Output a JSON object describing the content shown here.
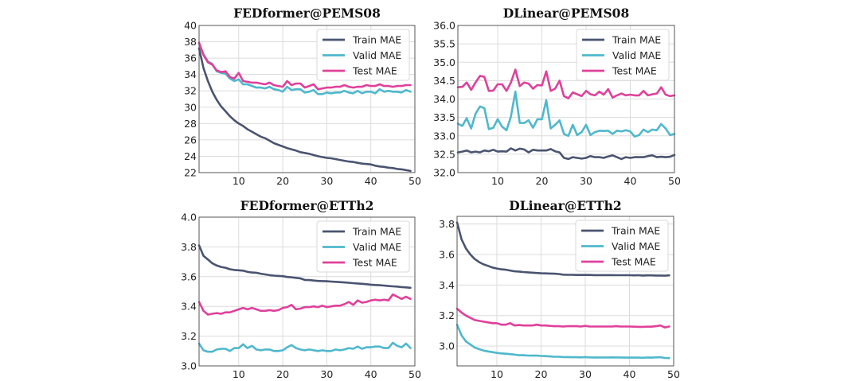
{
  "chart_data": [
    {
      "type": "line",
      "title": "FEDformer@PEMS08",
      "xlabel": "",
      "ylabel": "",
      "xlim": [
        1,
        50
      ],
      "ylim": [
        22,
        40
      ],
      "xticks": [
        10,
        20,
        30,
        40,
        50
      ],
      "yticks": [
        22,
        24,
        26,
        28,
        30,
        32,
        34,
        36,
        38,
        40
      ],
      "ytick_labels": [
        "22",
        "24",
        "26",
        "28",
        "30",
        "32",
        "34",
        "36",
        "38",
        "40"
      ],
      "grid": true,
      "legend_position": "top-right",
      "x": [
        1,
        2,
        3,
        4,
        5,
        6,
        7,
        8,
        9,
        10,
        11,
        12,
        13,
        14,
        15,
        16,
        17,
        18,
        19,
        20,
        21,
        22,
        23,
        24,
        25,
        26,
        27,
        28,
        29,
        30,
        31,
        32,
        33,
        34,
        35,
        36,
        37,
        38,
        39,
        40,
        41,
        42,
        43,
        44,
        45,
        46,
        47,
        48,
        49
      ],
      "series": [
        {
          "name": "Train MAE",
          "color": "#4a5470",
          "values": [
            37.2,
            34.8,
            33.2,
            31.9,
            30.9,
            30.1,
            29.5,
            28.9,
            28.4,
            28.0,
            27.7,
            27.3,
            27.0,
            26.7,
            26.4,
            26.2,
            25.9,
            25.6,
            25.4,
            25.2,
            25.0,
            24.85,
            24.7,
            24.5,
            24.4,
            24.3,
            24.15,
            24.0,
            23.9,
            23.8,
            23.75,
            23.65,
            23.55,
            23.45,
            23.35,
            23.3,
            23.2,
            23.1,
            23.05,
            23.0,
            22.85,
            22.75,
            22.7,
            22.6,
            22.55,
            22.45,
            22.4,
            22.3,
            22.2
          ]
        },
        {
          "name": "Valid MAE",
          "color": "#4fb8cc",
          "values": [
            37.8,
            36.5,
            35.6,
            35.3,
            34.4,
            34.2,
            34.1,
            33.5,
            33.2,
            33.4,
            32.8,
            32.8,
            32.6,
            32.4,
            32.4,
            32.3,
            32.5,
            32.2,
            32.1,
            31.9,
            32.5,
            32.1,
            32.2,
            32.2,
            31.8,
            31.9,
            32.1,
            31.6,
            31.6,
            31.8,
            31.7,
            31.8,
            31.8,
            32.0,
            31.8,
            31.7,
            32.0,
            31.7,
            31.9,
            31.9,
            31.7,
            32.2,
            31.9,
            32.0,
            31.9,
            31.9,
            31.8,
            32.1,
            31.9
          ]
        },
        {
          "name": "Test MAE",
          "color": "#e0409a",
          "values": [
            37.9,
            36.4,
            35.5,
            35.2,
            34.5,
            34.3,
            34.4,
            33.7,
            33.5,
            34.2,
            33.2,
            33.1,
            33.0,
            33.0,
            32.9,
            32.8,
            33.0,
            32.7,
            32.6,
            32.5,
            33.2,
            32.7,
            32.9,
            32.9,
            32.4,
            32.6,
            32.8,
            32.2,
            32.3,
            32.4,
            32.4,
            32.5,
            32.5,
            32.7,
            32.5,
            32.4,
            32.5,
            32.5,
            32.7,
            32.6,
            32.6,
            32.8,
            32.6,
            32.6,
            32.5,
            32.6,
            32.6,
            32.7,
            32.7
          ]
        }
      ]
    },
    {
      "type": "line",
      "title": "DLinear@PEMS08",
      "xlabel": "",
      "ylabel": "",
      "xlim": [
        1,
        50
      ],
      "ylim": [
        32.0,
        36.0
      ],
      "xticks": [
        10,
        20,
        30,
        40,
        50
      ],
      "yticks": [
        32.0,
        32.5,
        33.0,
        33.5,
        34.0,
        34.5,
        35.0,
        35.5,
        36.0
      ],
      "ytick_labels": [
        "32.0",
        "32.5",
        "33.0",
        "33.5",
        "34.0",
        "34.5",
        "35.0",
        "35.5",
        "36.0"
      ],
      "grid": true,
      "legend_position": "top-right",
      "x": [
        1,
        2,
        3,
        4,
        5,
        6,
        7,
        8,
        9,
        10,
        11,
        12,
        13,
        14,
        15,
        16,
        17,
        18,
        19,
        20,
        21,
        22,
        23,
        24,
        25,
        26,
        27,
        28,
        29,
        30,
        31,
        32,
        33,
        34,
        35,
        36,
        37,
        38,
        39,
        40,
        41,
        42,
        43,
        44,
        45,
        46,
        47,
        48,
        49,
        50
      ],
      "series": [
        {
          "name": "Train MAE",
          "color": "#4a5470",
          "values": [
            32.55,
            32.57,
            32.6,
            32.55,
            32.57,
            32.55,
            32.6,
            32.58,
            32.62,
            32.57,
            32.58,
            32.57,
            32.66,
            32.6,
            32.65,
            32.63,
            32.55,
            32.62,
            32.6,
            32.6,
            32.6,
            32.64,
            32.58,
            32.55,
            32.4,
            32.37,
            32.42,
            32.4,
            32.38,
            32.4,
            32.45,
            32.42,
            32.42,
            32.4,
            32.44,
            32.47,
            32.42,
            32.37,
            32.42,
            32.4,
            32.42,
            32.42,
            32.42,
            32.45,
            32.47,
            32.42,
            32.43,
            32.42,
            32.43,
            32.48
          ]
        },
        {
          "name": "Valid MAE",
          "color": "#4fb8cc",
          "values": [
            33.33,
            33.27,
            33.48,
            33.2,
            33.6,
            33.8,
            33.75,
            33.18,
            33.22,
            33.45,
            33.25,
            33.15,
            33.52,
            34.2,
            33.35,
            33.35,
            33.42,
            33.22,
            33.45,
            33.45,
            33.97,
            33.2,
            33.3,
            33.42,
            33.05,
            33.0,
            33.3,
            33.02,
            33.1,
            33.3,
            33.02,
            33.1,
            33.14,
            33.13,
            33.14,
            33.05,
            33.14,
            33.12,
            33.15,
            33.12,
            32.98,
            33.02,
            33.17,
            33.1,
            33.17,
            33.15,
            33.32,
            33.2,
            33.02,
            33.05
          ]
        },
        {
          "name": "Test MAE",
          "color": "#e0409a",
          "values": [
            34.32,
            34.33,
            34.45,
            34.25,
            34.45,
            34.63,
            34.6,
            34.22,
            34.23,
            34.4,
            34.4,
            34.22,
            34.45,
            34.8,
            34.35,
            34.45,
            34.42,
            34.28,
            34.38,
            34.37,
            34.75,
            34.22,
            34.28,
            34.5,
            34.08,
            34.02,
            34.18,
            34.13,
            34.08,
            34.22,
            34.13,
            34.1,
            34.2,
            34.12,
            34.27,
            34.04,
            34.1,
            34.15,
            34.1,
            34.12,
            34.1,
            34.1,
            34.22,
            34.1,
            34.13,
            34.15,
            34.32,
            34.12,
            34.08,
            34.1
          ]
        }
      ]
    },
    {
      "type": "line",
      "title": "FEDformer@ETTh2",
      "xlabel": "",
      "ylabel": "",
      "xlim": [
        1,
        50
      ],
      "ylim": [
        3.0,
        4.0
      ],
      "xticks": [
        10,
        20,
        30,
        40,
        50
      ],
      "yticks": [
        3.0,
        3.2,
        3.4,
        3.6,
        3.8,
        4.0
      ],
      "ytick_labels": [
        "3.0",
        "3.2",
        "3.4",
        "3.6",
        "3.8",
        "4.0"
      ],
      "grid": true,
      "legend_position": "top-right",
      "x": [
        1,
        2,
        3,
        4,
        5,
        6,
        7,
        8,
        9,
        10,
        11,
        12,
        13,
        14,
        15,
        16,
        17,
        18,
        19,
        20,
        21,
        22,
        23,
        24,
        25,
        26,
        27,
        28,
        29,
        30,
        31,
        32,
        33,
        34,
        35,
        36,
        37,
        38,
        39,
        40,
        41,
        42,
        43,
        44,
        45,
        46,
        47,
        48,
        49
      ],
      "series": [
        {
          "name": "Train MAE",
          "color": "#4a5470",
          "values": [
            3.81,
            3.74,
            3.715,
            3.69,
            3.675,
            3.665,
            3.66,
            3.65,
            3.645,
            3.643,
            3.64,
            3.632,
            3.628,
            3.626,
            3.62,
            3.615,
            3.61,
            3.607,
            3.605,
            3.603,
            3.598,
            3.595,
            3.592,
            3.588,
            3.578,
            3.577,
            3.574,
            3.571,
            3.57,
            3.569,
            3.567,
            3.565,
            3.563,
            3.561,
            3.559,
            3.556,
            3.554,
            3.552,
            3.549,
            3.546,
            3.544,
            3.542,
            3.54,
            3.537,
            3.535,
            3.533,
            3.53,
            3.528,
            3.525
          ]
        },
        {
          "name": "Valid MAE",
          "color": "#4fb8cc",
          "values": [
            3.15,
            3.105,
            3.095,
            3.095,
            3.11,
            3.115,
            3.115,
            3.1,
            3.12,
            3.12,
            3.145,
            3.12,
            3.135,
            3.11,
            3.105,
            3.11,
            3.11,
            3.1,
            3.1,
            3.105,
            3.125,
            3.14,
            3.12,
            3.11,
            3.105,
            3.11,
            3.105,
            3.1,
            3.105,
            3.1,
            3.1,
            3.11,
            3.105,
            3.11,
            3.12,
            3.115,
            3.13,
            3.115,
            3.125,
            3.125,
            3.13,
            3.13,
            3.12,
            3.12,
            3.155,
            3.135,
            3.125,
            3.15,
            3.12
          ]
        },
        {
          "name": "Test MAE",
          "color": "#e0409a",
          "values": [
            3.43,
            3.37,
            3.345,
            3.35,
            3.355,
            3.35,
            3.36,
            3.36,
            3.37,
            3.38,
            3.39,
            3.38,
            3.39,
            3.38,
            3.37,
            3.37,
            3.375,
            3.37,
            3.375,
            3.39,
            3.395,
            3.41,
            3.38,
            3.385,
            3.395,
            3.395,
            3.4,
            3.395,
            3.405,
            3.395,
            3.4,
            3.405,
            3.405,
            3.415,
            3.43,
            3.41,
            3.44,
            3.425,
            3.43,
            3.44,
            3.445,
            3.44,
            3.445,
            3.44,
            3.48,
            3.465,
            3.45,
            3.465,
            3.45
          ]
        }
      ]
    },
    {
      "type": "line",
      "title": "DLinear@ETTh2",
      "xlabel": "",
      "ylabel": "",
      "xlim": [
        1,
        50
      ],
      "ylim": [
        2.87,
        3.85
      ],
      "xticks": [
        10,
        20,
        30,
        40,
        50
      ],
      "yticks": [
        3.0,
        3.2,
        3.4,
        3.6,
        3.8
      ],
      "ytick_labels": [
        "3.0",
        "3.2",
        "3.4",
        "3.6",
        "3.8"
      ],
      "grid": true,
      "legend_position": "top-right",
      "x": [
        1,
        2,
        3,
        4,
        5,
        6,
        7,
        8,
        9,
        10,
        11,
        12,
        13,
        14,
        15,
        16,
        17,
        18,
        19,
        20,
        21,
        22,
        23,
        24,
        25,
        26,
        27,
        28,
        29,
        30,
        31,
        32,
        33,
        34,
        35,
        36,
        37,
        38,
        39,
        40,
        41,
        42,
        43,
        44,
        45,
        46,
        47,
        48,
        49
      ],
      "series": [
        {
          "name": "Train MAE",
          "color": "#4a5470",
          "values": [
            3.81,
            3.7,
            3.64,
            3.6,
            3.57,
            3.55,
            3.535,
            3.525,
            3.515,
            3.508,
            3.503,
            3.5,
            3.495,
            3.49,
            3.488,
            3.485,
            3.483,
            3.481,
            3.479,
            3.477,
            3.476,
            3.475,
            3.474,
            3.472,
            3.468,
            3.467,
            3.467,
            3.466,
            3.466,
            3.466,
            3.466,
            3.465,
            3.465,
            3.465,
            3.465,
            3.465,
            3.464,
            3.464,
            3.464,
            3.464,
            3.463,
            3.464,
            3.462,
            3.463,
            3.463,
            3.462,
            3.462,
            3.461,
            3.463
          ]
        },
        {
          "name": "Valid MAE",
          "color": "#4fb8cc",
          "values": [
            3.14,
            3.07,
            3.03,
            3.01,
            2.99,
            2.98,
            2.97,
            2.965,
            2.96,
            2.955,
            2.952,
            2.95,
            2.947,
            2.944,
            2.94,
            2.94,
            2.938,
            2.937,
            2.938,
            2.935,
            2.934,
            2.932,
            2.93,
            2.93,
            2.928,
            2.928,
            2.927,
            2.927,
            2.926,
            2.928,
            2.926,
            2.925,
            2.925,
            2.925,
            2.925,
            2.926,
            2.925,
            2.925,
            2.924,
            2.924,
            2.924,
            2.924,
            2.923,
            2.925,
            2.924,
            2.926,
            2.927,
            2.922,
            2.921
          ]
        },
        {
          "name": "Test MAE",
          "color": "#e0409a",
          "values": [
            3.245,
            3.22,
            3.2,
            3.185,
            3.17,
            3.165,
            3.16,
            3.155,
            3.15,
            3.15,
            3.14,
            3.14,
            3.15,
            3.135,
            3.138,
            3.135,
            3.135,
            3.135,
            3.14,
            3.135,
            3.135,
            3.132,
            3.13,
            3.13,
            3.128,
            3.13,
            3.13,
            3.13,
            3.128,
            3.132,
            3.128,
            3.128,
            3.128,
            3.128,
            3.128,
            3.128,
            3.13,
            3.128,
            3.128,
            3.128,
            3.127,
            3.126,
            3.126,
            3.127,
            3.127,
            3.13,
            3.135,
            3.122,
            3.128
          ]
        }
      ]
    }
  ]
}
